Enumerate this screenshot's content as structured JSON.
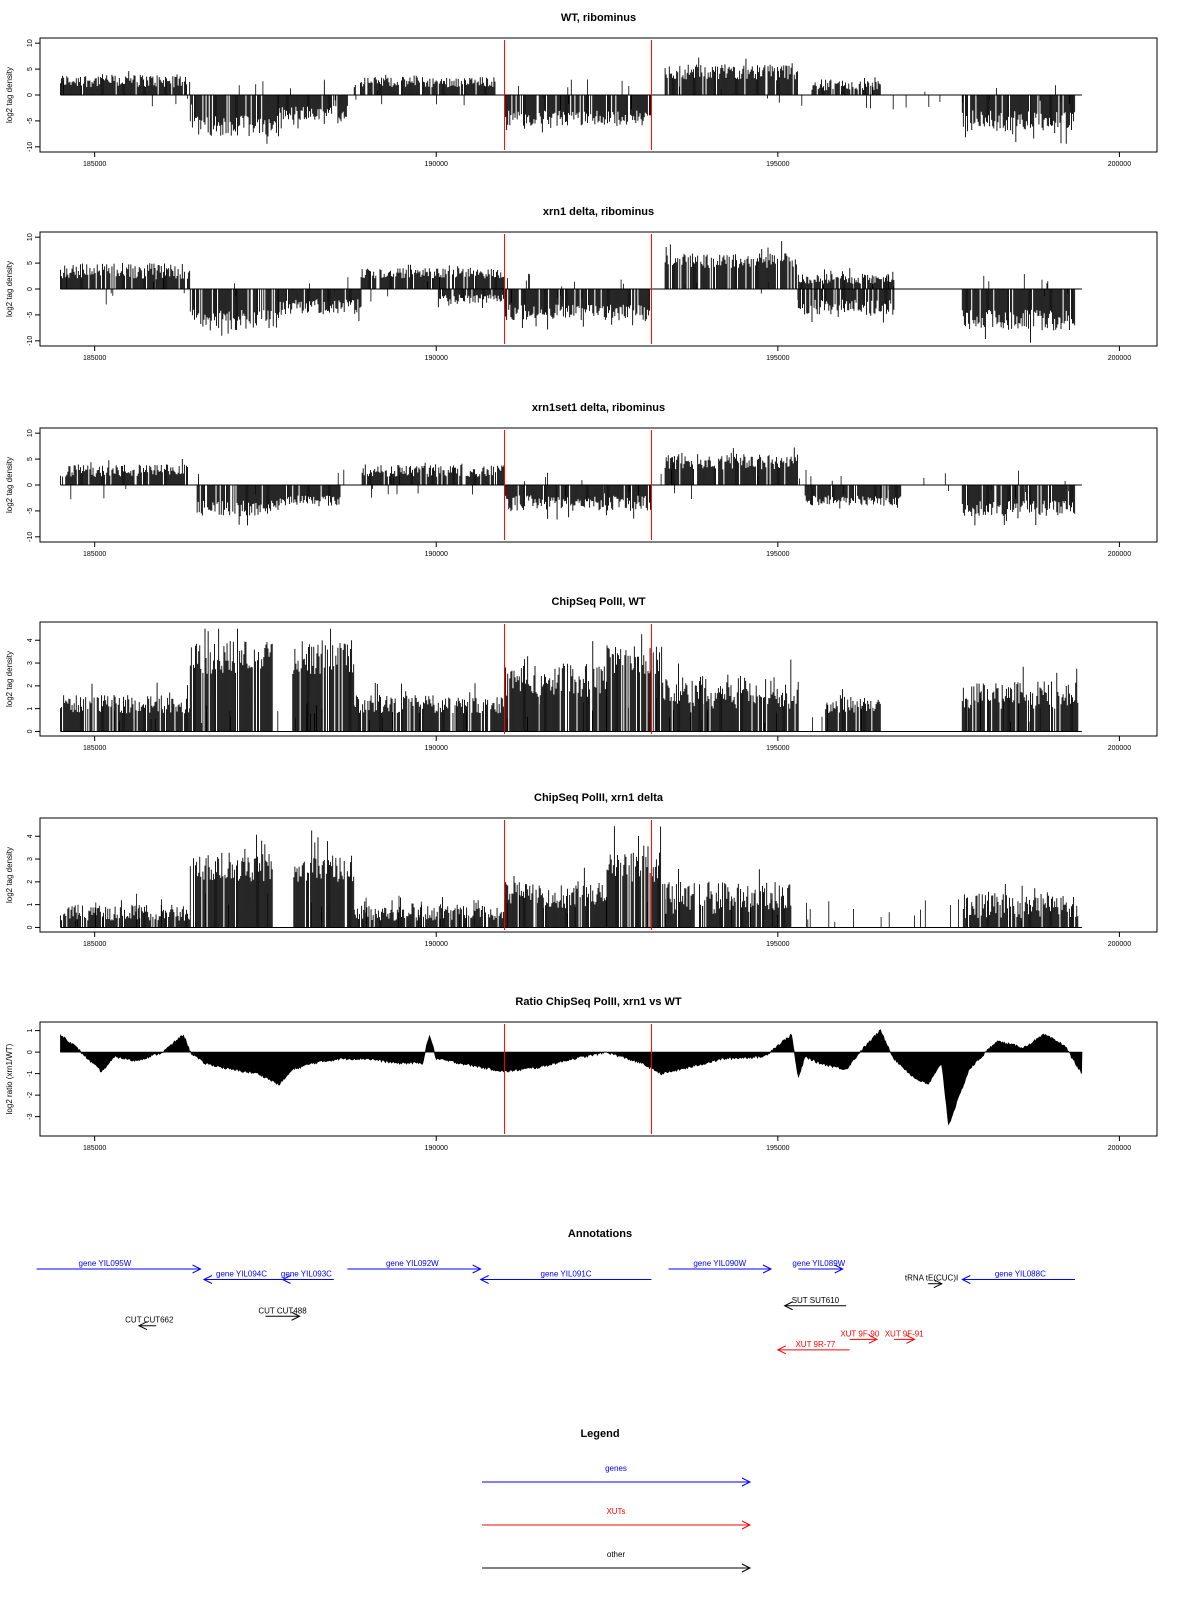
{
  "chart_data": [
    {
      "type": "bar",
      "title": "WT, ribominus",
      "ylabel": "log2 tag density",
      "xlim": [
        184200,
        200550
      ],
      "ylim": [
        -11,
        11
      ],
      "xticks": [
        "185000",
        "190000",
        "195000",
        "200000"
      ],
      "yticks": [
        "10",
        "5",
        "0",
        "-5",
        "-10"
      ],
      "markers": [
        191000,
        193150
      ],
      "segments": [
        {
          "x": [
            184500,
            186400
          ],
          "strand": "plus",
          "range": [
            1.5,
            4
          ]
        },
        {
          "x": [
            186400,
            187700
          ],
          "strand": "minus",
          "range": [
            4,
            8
          ]
        },
        {
          "x": [
            187700,
            188700
          ],
          "strand": "minus",
          "range": [
            2,
            5
          ]
        },
        {
          "x": [
            188800,
            190900
          ],
          "strand": "plus",
          "range": [
            1.5,
            3.5
          ]
        },
        {
          "x": [
            191000,
            193150
          ],
          "strand": "minus",
          "range": [
            3,
            6
          ]
        },
        {
          "x": [
            193350,
            195300
          ],
          "strand": "plus",
          "range": [
            3,
            6
          ]
        },
        {
          "x": [
            195500,
            196500
          ],
          "strand": "plus",
          "range": [
            0.8,
            3
          ]
        },
        {
          "x": [
            197700,
            199350
          ],
          "strand": "minus",
          "range": [
            3,
            7
          ]
        }
      ]
    },
    {
      "type": "bar",
      "title": "xrn1 delta, ribominus",
      "ylabel": "log2 tag density",
      "xlim": [
        184200,
        200550
      ],
      "ylim": [
        -11,
        11
      ],
      "xticks": [
        "185000",
        "190000",
        "195000",
        "200000"
      ],
      "yticks": [
        "10",
        "5",
        "0",
        "-5",
        "-10"
      ],
      "markers": [
        191000,
        193150
      ],
      "segments": [
        {
          "x": [
            184500,
            186400
          ],
          "strand": "plus",
          "range": [
            2,
            5
          ]
        },
        {
          "x": [
            186400,
            187700
          ],
          "strand": "minus",
          "range": [
            4,
            8
          ]
        },
        {
          "x": [
            187700,
            188900
          ],
          "strand": "minus",
          "range": [
            2,
            5
          ]
        },
        {
          "x": [
            188900,
            191000
          ],
          "strand": "plus",
          "range": [
            2,
            4
          ]
        },
        {
          "x": [
            190000,
            191000
          ],
          "strand": "minus",
          "range": [
            1,
            3
          ]
        },
        {
          "x": [
            191000,
            193150
          ],
          "strand": "minus",
          "range": [
            3,
            6
          ]
        },
        {
          "x": [
            193350,
            195300
          ],
          "strand": "plus",
          "range": [
            4,
            7
          ]
        },
        {
          "x": [
            195300,
            196700
          ],
          "strand": "plus",
          "range": [
            1,
            3
          ]
        },
        {
          "x": [
            195300,
            196700
          ],
          "strand": "minus",
          "range": [
            2,
            5
          ]
        },
        {
          "x": [
            197700,
            199350
          ],
          "strand": "minus",
          "range": [
            4,
            8
          ]
        }
      ]
    },
    {
      "type": "bar",
      "title": "xrn1set1 delta, ribominus",
      "ylabel": "log2 tag density",
      "xlim": [
        184200,
        200550
      ],
      "ylim": [
        -11,
        11
      ],
      "xticks": [
        "185000",
        "190000",
        "195000",
        "200000"
      ],
      "yticks": [
        "10",
        "5",
        "0",
        "-5",
        "-10"
      ],
      "markers": [
        191000,
        193150
      ],
      "segments": [
        {
          "x": [
            184500,
            186400
          ],
          "strand": "plus",
          "range": [
            1.5,
            4
          ]
        },
        {
          "x": [
            186500,
            187700
          ],
          "strand": "minus",
          "range": [
            3,
            6
          ]
        },
        {
          "x": [
            187700,
            188600
          ],
          "strand": "minus",
          "range": [
            2,
            4
          ]
        },
        {
          "x": [
            188900,
            191000
          ],
          "strand": "plus",
          "range": [
            1.5,
            4
          ]
        },
        {
          "x": [
            191000,
            193150
          ],
          "strand": "minus",
          "range": [
            2,
            5
          ]
        },
        {
          "x": [
            193350,
            195300
          ],
          "strand": "plus",
          "range": [
            3,
            6
          ]
        },
        {
          "x": [
            195400,
            196800
          ],
          "strand": "minus",
          "range": [
            2,
            4
          ]
        },
        {
          "x": [
            197700,
            199350
          ],
          "strand": "minus",
          "range": [
            3,
            6
          ]
        }
      ]
    },
    {
      "type": "bar",
      "title": "ChipSeq PolII, WT",
      "ylabel": "log2 tag density",
      "xlim": [
        184200,
        200550
      ],
      "ylim": [
        -0.2,
        4.8
      ],
      "xticks": [
        "185000",
        "190000",
        "195000",
        "200000"
      ],
      "yticks": [
        "4",
        "3",
        "2",
        "1",
        "0"
      ],
      "markers": [
        191000,
        193150
      ],
      "segments": [
        {
          "x": [
            184500,
            186400
          ],
          "strand": "plus",
          "range": [
            0.8,
            1.6
          ]
        },
        {
          "x": [
            186400,
            187600
          ],
          "strand": "plus",
          "range": [
            2.5,
            4
          ]
        },
        {
          "x": [
            187900,
            188800
          ],
          "strand": "plus",
          "range": [
            2.5,
            4
          ]
        },
        {
          "x": [
            188800,
            191000
          ],
          "strand": "plus",
          "range": [
            0.8,
            1.6
          ]
        },
        {
          "x": [
            191000,
            192500
          ],
          "strand": "plus",
          "range": [
            1.5,
            3
          ]
        },
        {
          "x": [
            192500,
            193300
          ],
          "strand": "plus",
          "range": [
            2.5,
            3.8
          ]
        },
        {
          "x": [
            193300,
            195300
          ],
          "strand": "plus",
          "range": [
            1,
            2.5
          ]
        },
        {
          "x": [
            195700,
            196500
          ],
          "strand": "plus",
          "range": [
            0.8,
            1.6
          ]
        },
        {
          "x": [
            197700,
            199400
          ],
          "strand": "plus",
          "range": [
            1,
            2.2
          ]
        }
      ]
    },
    {
      "type": "bar",
      "title": "ChipSeq PolII, xrn1 delta",
      "ylabel": "log2 tag density",
      "xlim": [
        184200,
        200550
      ],
      "ylim": [
        -0.2,
        4.8
      ],
      "xticks": [
        "185000",
        "190000",
        "195000",
        "200000"
      ],
      "yticks": [
        "4",
        "3",
        "2",
        "1",
        "0"
      ],
      "markers": [
        191000,
        193150
      ],
      "segments": [
        {
          "x": [
            184500,
            186400
          ],
          "strand": "plus",
          "range": [
            0.3,
            1
          ]
        },
        {
          "x": [
            186400,
            187600
          ],
          "strand": "plus",
          "range": [
            2,
            3.3
          ]
        },
        {
          "x": [
            187900,
            188800
          ],
          "strand": "plus",
          "range": [
            2,
            3.2
          ]
        },
        {
          "x": [
            188800,
            191000
          ],
          "strand": "plus",
          "range": [
            0.3,
            1
          ]
        },
        {
          "x": [
            191000,
            192500
          ],
          "strand": "plus",
          "range": [
            0.8,
            2
          ]
        },
        {
          "x": [
            192500,
            193300
          ],
          "strand": "plus",
          "range": [
            2,
            3.3
          ]
        },
        {
          "x": [
            193300,
            195200
          ],
          "strand": "plus",
          "range": [
            0.6,
            2
          ]
        },
        {
          "x": [
            197700,
            199400
          ],
          "strand": "plus",
          "range": [
            0.4,
            1.5
          ]
        }
      ]
    },
    {
      "type": "area",
      "title": "Ratio ChipSeq PolII, xrn1 vs WT",
      "ylabel": "log2 ratio (xrn1/WT)",
      "xlim": [
        184200,
        200550
      ],
      "ylim": [
        -3.9,
        1.4
      ],
      "xticks": [
        "185000",
        "190000",
        "195000",
        "200000"
      ],
      "yticks": [
        "1",
        "0",
        "-1",
        "-2",
        "-3"
      ],
      "markers": [
        191000,
        193150
      ],
      "x": [
        184500,
        184700,
        184900,
        185100,
        185300,
        185600,
        186000,
        186300,
        186400,
        186600,
        187000,
        187400,
        187700,
        187900,
        188200,
        188600,
        189000,
        189400,
        189800,
        189900,
        190000,
        190500,
        191000,
        191500,
        192000,
        192500,
        193000,
        193300,
        193700,
        194200,
        194800,
        195200,
        195300,
        195400,
        195600,
        196000,
        196200,
        196500,
        196700,
        197000,
        197200,
        197400,
        197500,
        197600,
        197800,
        198200,
        198600,
        198900,
        199200,
        199450
      ],
      "y": [
        0.8,
        0.3,
        -0.3,
        -0.9,
        -0.2,
        -0.4,
        0,
        0.8,
        0,
        -0.5,
        -0.8,
        -1,
        -1.5,
        -0.8,
        -0.5,
        -0.3,
        -0.3,
        -0.5,
        -0.5,
        0.8,
        -0.3,
        -0.6,
        -0.9,
        -0.7,
        -0.3,
        0,
        -0.5,
        -1,
        -0.7,
        -0.3,
        -0.2,
        0.8,
        -1.2,
        -0.2,
        -0.5,
        -0.8,
        0,
        1,
        -0.3,
        -1.2,
        -1.5,
        -0.5,
        -3.4,
        -2.5,
        -0.8,
        0.5,
        0.2,
        0.8,
        0.3,
        -1
      ]
    }
  ],
  "annotations": {
    "title": "Annotations",
    "items": [
      {
        "label": "gene YIL095W",
        "start": 184150,
        "end": 186550,
        "dir": "right",
        "color": "#0000ff",
        "row": 0,
        "labelx": 185150
      },
      {
        "label": "gene YIL094C",
        "start": 186600,
        "end": 187750,
        "dir": "left",
        "color": "#0000ff",
        "row": 1,
        "labelx": 187150
      },
      {
        "label": "gene YIL093C",
        "start": 187750,
        "end": 188500,
        "dir": "left",
        "color": "#0000ff",
        "row": 1,
        "labelx": 188100
      },
      {
        "label": "gene YIL092W",
        "start": 188700,
        "end": 190650,
        "dir": "right",
        "color": "#0000ff",
        "row": 0,
        "labelx": 189650
      },
      {
        "label": "gene YIL091C",
        "start": 190650,
        "end": 193150,
        "dir": "left",
        "color": "#0000ff",
        "row": 1,
        "labelx": 191900
      },
      {
        "label": "gene YIL090W",
        "start": 193400,
        "end": 194900,
        "dir": "right",
        "color": "#0000ff",
        "row": 0,
        "labelx": 194150
      },
      {
        "label": "gene YIL089W",
        "start": 195300,
        "end": 195950,
        "dir": "right",
        "color": "#0000ff",
        "row": 0,
        "labelx": 195600
      },
      {
        "label": "gene YIL088C",
        "start": 197700,
        "end": 199350,
        "dir": "left",
        "color": "#0000ff",
        "row": 1,
        "labelx": 198550
      },
      {
        "label": "tRNA tE(CUC)I",
        "start": 197200,
        "end": 197400,
        "dir": "right",
        "color": "#000000",
        "row": 1.4,
        "labelx": 197250
      },
      {
        "label": "CUT CUT662",
        "start": 185650,
        "end": 185900,
        "dir": "left",
        "color": "#000000",
        "row": 5.4,
        "labelx": 185800
      },
      {
        "label": "CUT CUT488",
        "start": 187500,
        "end": 188000,
        "dir": "right",
        "color": "#000000",
        "row": 4.5,
        "labelx": 187750
      },
      {
        "label": "SUT SUT610",
        "start": 195100,
        "end": 196000,
        "dir": "left",
        "color": "#000000",
        "row": 3.5,
        "labelx": 195550
      },
      {
        "label": "XUT 9R-77",
        "start": 195000,
        "end": 196050,
        "dir": "left",
        "color": "#ff0000",
        "row": 7.7,
        "labelx": 195550
      },
      {
        "label": "XUT 9F-90",
        "start": 196050,
        "end": 196450,
        "dir": "right",
        "color": "#ff0000",
        "row": 6.7,
        "labelx": 196200
      },
      {
        "label": "XUT 9F-91",
        "start": 196700,
        "end": 197000,
        "dir": "right",
        "color": "#ff0000",
        "row": 6.7,
        "labelx": 196850
      }
    ]
  },
  "legend": {
    "title": "Legend",
    "entries": [
      {
        "label": "genes",
        "color": "#0000ff"
      },
      {
        "label": "XUTs",
        "color": "#ff0000"
      },
      {
        "label": "other",
        "color": "#000000"
      }
    ]
  }
}
